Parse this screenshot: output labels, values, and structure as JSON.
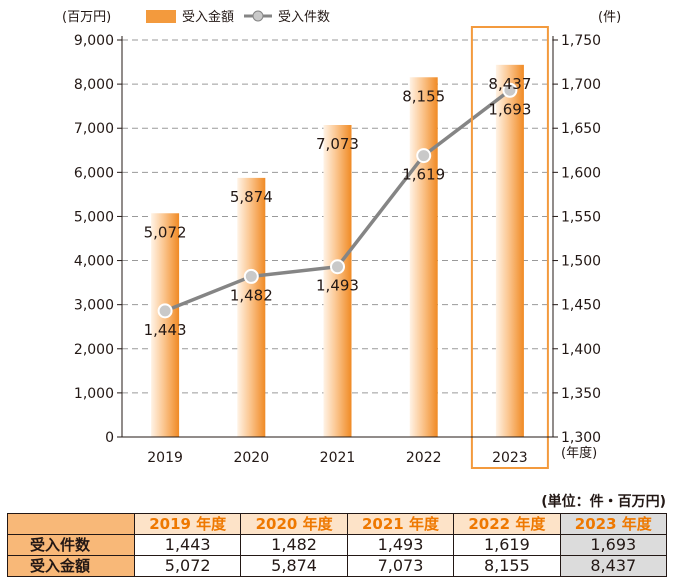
{
  "chart_data": {
    "type": "bar+line",
    "categories": [
      "2019",
      "2020",
      "2021",
      "2022",
      "2023"
    ],
    "series": [
      {
        "name": "受入金額",
        "type": "bar",
        "axis": "left",
        "values": [
          5072,
          5874,
          7073,
          8155,
          8437
        ],
        "value_labels": [
          "5,072",
          "5,874",
          "7,073",
          "8,155",
          "8,437"
        ]
      },
      {
        "name": "受入件数",
        "type": "line",
        "axis": "right",
        "values": [
          1443,
          1482,
          1493,
          1619,
          1693
        ],
        "value_labels": [
          "1,443",
          "1,482",
          "1,493",
          "1,619",
          "1,693"
        ]
      }
    ],
    "left_axis": {
      "unit": "(百万円)",
      "ylim": [
        0,
        9000
      ],
      "ticks": [
        "0",
        "1,000",
        "2,000",
        "3,000",
        "4,000",
        "5,000",
        "6,000",
        "7,000",
        "8,000",
        "9,000"
      ]
    },
    "right_axis": {
      "unit": "(件)",
      "ylim": [
        1300,
        1750
      ],
      "ticks": [
        "1,300",
        "1,350",
        "1,400",
        "1,450",
        "1,500",
        "1,550",
        "1,600",
        "1,650",
        "1,700",
        "1,750"
      ]
    },
    "xlabel": "(年度)",
    "grid": "horizontal dashed",
    "legend": "top",
    "highlight_category": "2023",
    "colors": {
      "bar": "#f39a3d",
      "bar_light": "#fde0bf",
      "line": "#858585",
      "point": "#c9c9c9",
      "highlight": "#f39a3d"
    }
  },
  "table": {
    "unit_note": "(単位：件・百万円)",
    "headers": [
      "2019 年度",
      "2020 年度",
      "2021 年度",
      "2022 年度",
      "2023 年度"
    ],
    "rows": [
      {
        "label": "受入件数",
        "values": [
          "1,443",
          "1,482",
          "1,493",
          "1,619",
          "1,693"
        ]
      },
      {
        "label": "受入金額",
        "values": [
          "5,072",
          "5,874",
          "7,073",
          "8,155",
          "8,437"
        ]
      }
    ]
  }
}
